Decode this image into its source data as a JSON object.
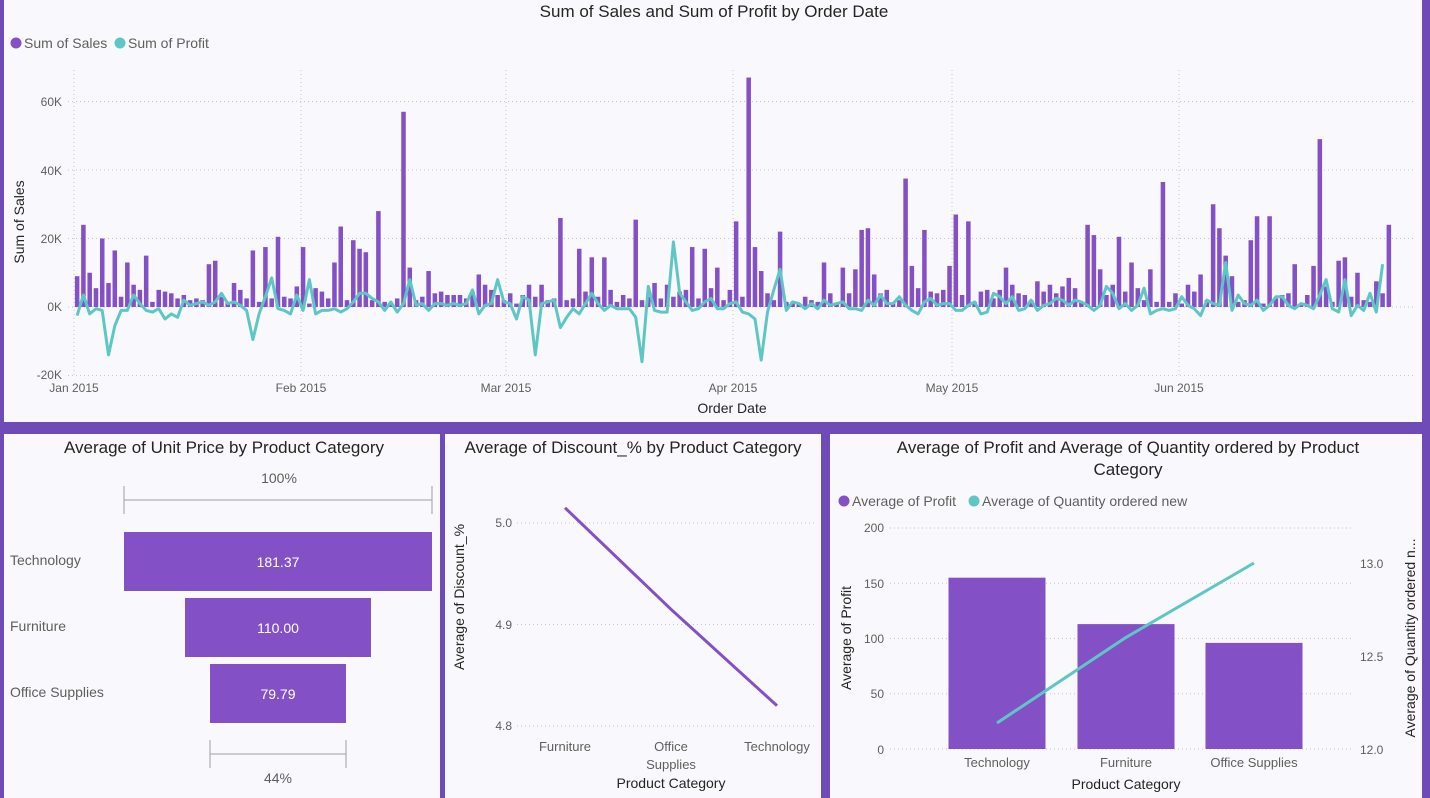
{
  "colors": {
    "sales": "#8450c6",
    "profit": "#5ec7c5"
  },
  "top_chart": {
    "title": "Sum of Sales and Sum of Profit by Order Date",
    "legend": [
      {
        "label": "Sum of Sales",
        "color": "#8450c6"
      },
      {
        "label": "Sum of Profit",
        "color": "#5ec7c5"
      }
    ],
    "ylabel": "Sum of Sales",
    "xlabel": "Order Date",
    "yticks": [
      "60K",
      "40K",
      "20K",
      "0K",
      "-20K"
    ],
    "xticks": [
      "Jan 2015",
      "Feb 2015",
      "Mar 2015",
      "Apr 2015",
      "May 2015",
      "Jun 2015"
    ]
  },
  "funnel": {
    "title": "Average of Unit Price by Product Category",
    "top_pct": "100%",
    "bottom_pct": "44%",
    "items": [
      {
        "label": "Technology",
        "value_label": "181.37"
      },
      {
        "label": "Furniture",
        "value_label": "110.00"
      },
      {
        "label": "Office Supplies",
        "value_label": "79.79"
      }
    ]
  },
  "discount": {
    "title": "Average of Discount_% by Product Category",
    "ylabel": "Average of Discount_%",
    "xlabel": "Product Category",
    "yticks": [
      "5.0",
      "4.9",
      "4.8"
    ],
    "categories": [
      "Furniture",
      "Office Supplies",
      "Technology"
    ]
  },
  "combo": {
    "title_line1": "Average of Profit and Average of Quantity ordered by Product",
    "title_line2": "Category",
    "legend": [
      {
        "label": "Average of Profit",
        "color": "#8450c6"
      },
      {
        "label": "Average of Quantity ordered new",
        "color": "#5ec7c5"
      }
    ],
    "ylabel_left": "Average of Profit",
    "ylabel_right": "Average of Quantity ordered n...",
    "xlabel": "Product Category",
    "yticks_left": [
      "200",
      "150",
      "100",
      "50",
      "0"
    ],
    "yticks_right": [
      "13.0",
      "12.5",
      "12.0"
    ],
    "categories": [
      "Technology",
      "Furniture",
      "Office Supplies"
    ]
  },
  "chart_data": [
    {
      "type": "bar",
      "series_type": "bar+line",
      "title": "Sum of Sales and Sum of Profit by Order Date",
      "xlabel": "Order Date",
      "ylabel": "Sum of Sales",
      "ylim": [
        -20000,
        70000
      ],
      "x_start": "2015-01-01",
      "x_end": "2015-06-30",
      "series": [
        {
          "name": "Sum of Sales",
          "type": "bar",
          "values": [
            9000,
            24000,
            10000,
            5500,
            20000,
            7000,
            16500,
            3000,
            13000,
            6500,
            5000,
            15000,
            1500,
            5000,
            4500,
            4000,
            2500,
            3500,
            2000,
            2500,
            2000,
            12500,
            13500,
            3000,
            1500,
            7000,
            5000,
            2500,
            16500,
            1500,
            17500,
            2500,
            20500,
            3000,
            2500,
            6000,
            17500,
            1000,
            5500,
            4500,
            2500,
            13000,
            23500,
            2000,
            19500,
            17000,
            16000,
            2000,
            28000,
            1500,
            1000,
            2500,
            57000,
            11500,
            2000,
            3000,
            10500,
            4000,
            4500,
            3500,
            3500,
            3500,
            2500,
            4500,
            9500,
            6500,
            5000,
            3500,
            2000,
            4000,
            1000,
            3500,
            6500,
            3000,
            6500,
            2000,
            2500,
            26000,
            2000,
            2500,
            17000,
            4500,
            14500,
            3000,
            14500,
            5000,
            1500,
            3500,
            2500,
            25500,
            2000,
            3000,
            7000,
            2500,
            6500,
            3000,
            4500,
            5000,
            17500,
            2500,
            17000,
            5500,
            11500,
            2000,
            5000,
            25000,
            3000,
            67000,
            17500,
            10500,
            4000,
            2000,
            22000,
            1500,
            1500,
            1000,
            3000,
            2000,
            1500,
            13000,
            4000,
            1000,
            11500,
            4000,
            11000,
            22500,
            23000,
            9500,
            4000,
            5000,
            1000,
            2000,
            37500,
            12000,
            5500,
            22500,
            4500,
            4000,
            5000,
            12000,
            27000,
            3500,
            25000,
            1500,
            4500,
            5000,
            2500,
            5000,
            11500,
            6500,
            4000,
            3500,
            2000,
            7500,
            4500,
            6500,
            4000,
            6000,
            8500,
            5500,
            1500,
            24000,
            21000,
            11000,
            3500,
            6500,
            20500,
            4500,
            13000,
            5500,
            2000,
            11000,
            1500,
            36500,
            1500,
            4000,
            1000,
            6500,
            4500,
            9500,
            2000,
            30000,
            23000,
            15000,
            9000,
            1500,
            2000,
            19500,
            26500,
            1000,
            26500,
            2500,
            3500,
            4000,
            12500,
            1000,
            3500,
            12000,
            49000,
            6000,
            1500,
            13500,
            14500,
            3000,
            10000,
            2000,
            1500,
            7500,
            4000,
            24000
          ]
        },
        {
          "name": "Sum of Profit",
          "type": "line",
          "values": [
            -2500,
            3500,
            -2000,
            -500,
            -1000,
            -14000,
            -5500,
            -1000,
            -1000,
            3500,
            1000,
            -1000,
            -1500,
            -500,
            -3500,
            -2000,
            -3000,
            2000,
            500,
            1000,
            1500,
            500,
            1500,
            4000,
            1000,
            1500,
            500,
            -1000,
            -9500,
            -2000,
            3000,
            8500,
            -500,
            -1000,
            -2000,
            3500,
            -1000,
            8000,
            -2000,
            -1000,
            -1000,
            -500,
            -1500,
            -500,
            1500,
            4000,
            4000,
            2500,
            1500,
            -1000,
            1500,
            -1500,
            1000,
            8000,
            500,
            1000,
            -1000,
            1000,
            1000,
            500,
            1000,
            500,
            1000,
            5000,
            -2000,
            500,
            1000,
            8000,
            1500,
            1000,
            -3500,
            3000,
            2000,
            -14000,
            1000,
            1500,
            2000,
            -6000,
            -3000,
            -500,
            -2000,
            1000,
            4000,
            1000,
            -1000,
            500,
            -500,
            -500,
            -500,
            -3000,
            -16000,
            6000,
            -1000,
            -1500,
            -1500,
            19000,
            4000,
            1500,
            -1000,
            -500,
            1500,
            2500,
            -500,
            -500,
            1000,
            1500,
            -1500,
            -2000,
            -3500,
            -15500,
            -1500,
            5000,
            11000,
            -1000,
            1500,
            1000,
            -500,
            1000,
            -500,
            2000,
            500,
            1000,
            1500,
            -500,
            -500,
            -1000,
            2000,
            500,
            3500,
            1000,
            1000,
            3000,
            500,
            -1000,
            -2000,
            1500,
            2500,
            500,
            1000,
            1000,
            -1000,
            -1000,
            500,
            1500,
            -2000,
            -1500,
            4000,
            3000,
            1000,
            3000,
            -1000,
            -500,
            2000,
            -1000,
            500,
            1000,
            2500,
            2000,
            500,
            2000,
            1500,
            500,
            -1000,
            500,
            6000,
            4000,
            -500,
            1000,
            -1000,
            500,
            5500,
            -2000,
            -1000,
            -500,
            -1000,
            -500,
            3000,
            500,
            -500,
            -2500,
            2000,
            1000,
            500,
            13000,
            -1000,
            3500,
            1000,
            500,
            2000,
            -1000,
            500,
            3000,
            3000,
            500,
            -500,
            1000,
            500,
            -500,
            3500,
            8000,
            -500,
            -1500,
            8000,
            -2500,
            500,
            -1000,
            4000,
            -1500,
            12500
          ]
        }
      ]
    },
    {
      "type": "bar",
      "series_type": "funnel",
      "title": "Average of Unit Price by Product Category",
      "categories": [
        "Technology",
        "Furniture",
        "Office Supplies"
      ],
      "values": [
        181.37,
        110.0,
        79.79
      ]
    },
    {
      "type": "line",
      "title": "Average of Discount_% by Product Category",
      "xlabel": "Product Category",
      "ylabel": "Average of Discount_%",
      "ylim": [
        4.78,
        5.06
      ],
      "categories": [
        "Furniture",
        "Office Supplies",
        "Technology"
      ],
      "values": [
        5.015,
        4.915,
        4.82
      ]
    },
    {
      "type": "bar",
      "series_type": "bar+line",
      "title": "Average of Profit and Average of Quantity ordered by Product Category",
      "xlabel": "Product Category",
      "categories": [
        "Technology",
        "Furniture",
        "Office Supplies"
      ],
      "series": [
        {
          "name": "Average of Profit",
          "type": "bar",
          "axis": "left",
          "ylim": [
            0,
            200
          ],
          "values": [
            155,
            113,
            96
          ]
        },
        {
          "name": "Average of Quantity ordered new",
          "type": "line",
          "axis": "right",
          "ylim": [
            12.0,
            13.0
          ],
          "values": [
            12.14,
            12.6,
            13.0
          ]
        }
      ]
    }
  ]
}
